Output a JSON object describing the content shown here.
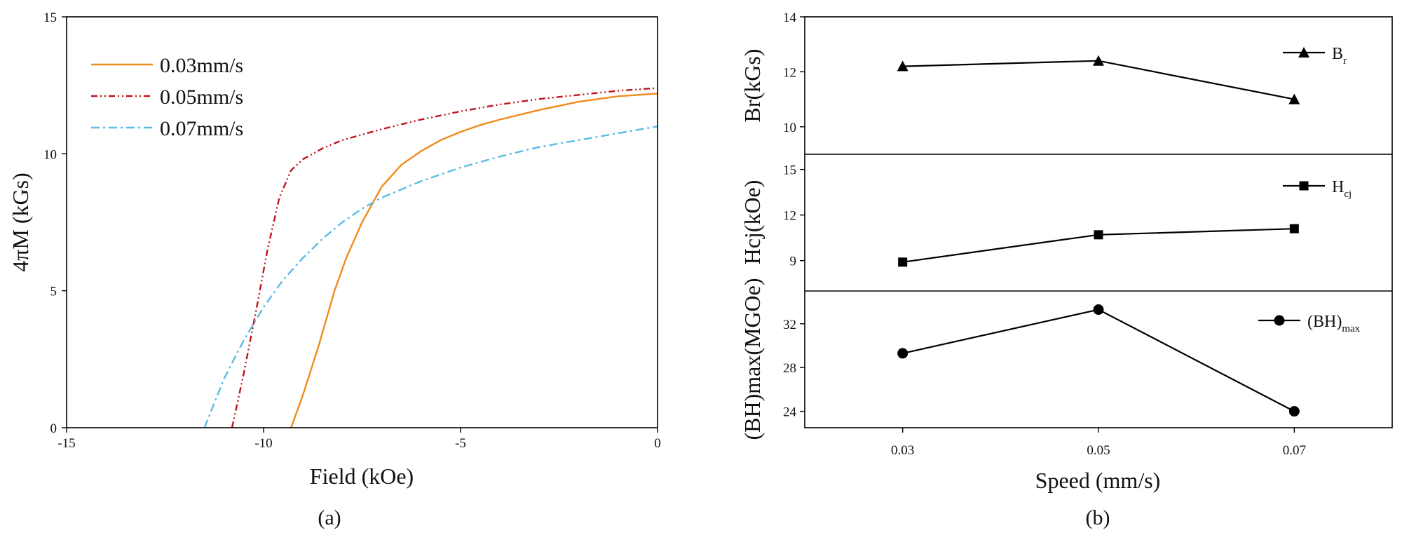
{
  "chart_data": [
    {
      "id": "a",
      "type": "line",
      "caption": "(a)",
      "xlabel": "Field (kOe)",
      "ylabel": "4πM (kGs)",
      "xlim": [
        -15,
        0
      ],
      "ylim": [
        0,
        15
      ],
      "xticks": [
        "-15",
        "-10",
        "-5",
        "0"
      ],
      "yticks": [
        "0",
        "5",
        "10",
        "15"
      ],
      "legend_position": "top-left",
      "series": [
        {
          "name": "0.03mm/s",
          "color": "#f08a1c",
          "dash": "solid",
          "x": [
            -9.3,
            -9.0,
            -8.6,
            -8.2,
            -7.9,
            -7.5,
            -7.0,
            -6.5,
            -6.0,
            -5.5,
            -5.0,
            -4.5,
            -4.0,
            -3.0,
            -2.0,
            -1.0,
            0.0
          ],
          "y": [
            0.0,
            1.2,
            3.0,
            5.0,
            6.2,
            7.5,
            8.8,
            9.6,
            10.1,
            10.5,
            10.8,
            11.05,
            11.25,
            11.6,
            11.9,
            12.1,
            12.2
          ]
        },
        {
          "name": "0.05mm/s",
          "color": "#c0141c",
          "dash": "dashdotdot",
          "x": [
            -10.8,
            -10.5,
            -10.2,
            -9.9,
            -9.6,
            -9.3,
            -9.0,
            -8.5,
            -8.0,
            -7.0,
            -6.0,
            -5.0,
            -4.0,
            -3.0,
            -2.0,
            -1.0,
            0.0
          ],
          "y": [
            0.0,
            2.0,
            4.2,
            6.5,
            8.4,
            9.4,
            9.8,
            10.2,
            10.5,
            10.9,
            11.25,
            11.55,
            11.8,
            12.0,
            12.15,
            12.3,
            12.4
          ]
        },
        {
          "name": "0.07mm/s",
          "color": "#5bbbe6",
          "dash": "dashdot",
          "x": [
            -11.5,
            -11.0,
            -10.5,
            -10.0,
            -9.5,
            -9.0,
            -8.5,
            -8.0,
            -7.5,
            -7.0,
            -6.0,
            -5.0,
            -4.0,
            -3.0,
            -2.0,
            -1.0,
            0.0
          ],
          "y": [
            0.0,
            1.8,
            3.2,
            4.4,
            5.4,
            6.2,
            6.9,
            7.5,
            8.0,
            8.4,
            9.0,
            9.5,
            9.9,
            10.25,
            10.5,
            10.75,
            11.0
          ]
        }
      ]
    },
    {
      "id": "b",
      "type": "line",
      "caption": "(b)",
      "xlabel": "Speed (mm/s)",
      "xticks": [
        "0.03",
        "0.05",
        "0.07"
      ],
      "x": [
        0.03,
        0.05,
        0.07
      ],
      "xlim": [
        0.02,
        0.08
      ],
      "panels": [
        {
          "ylabel": "Br(kGs)",
          "ylim": [
            9.0,
            14.0
          ],
          "yticks": [
            10,
            12,
            14
          ],
          "marker": "triangle",
          "legend_main": "B",
          "legend_sub": "r",
          "values": [
            12.2,
            12.4,
            11.0
          ]
        },
        {
          "ylabel": "Hcj(kOe)",
          "ylim": [
            7.0,
            16.0
          ],
          "yticks": [
            9,
            12,
            15
          ],
          "marker": "square",
          "legend_main": "H",
          "legend_sub": "cj",
          "values": [
            8.9,
            10.7,
            11.1
          ]
        },
        {
          "ylabel": "(BH)max(MGOe)",
          "ylim": [
            22.5,
            35.0
          ],
          "yticks": [
            24,
            28,
            32
          ],
          "marker": "circle",
          "legend_main": "(BH)",
          "legend_sub": "max",
          "values": [
            29.3,
            33.3,
            24.0
          ]
        }
      ]
    }
  ]
}
